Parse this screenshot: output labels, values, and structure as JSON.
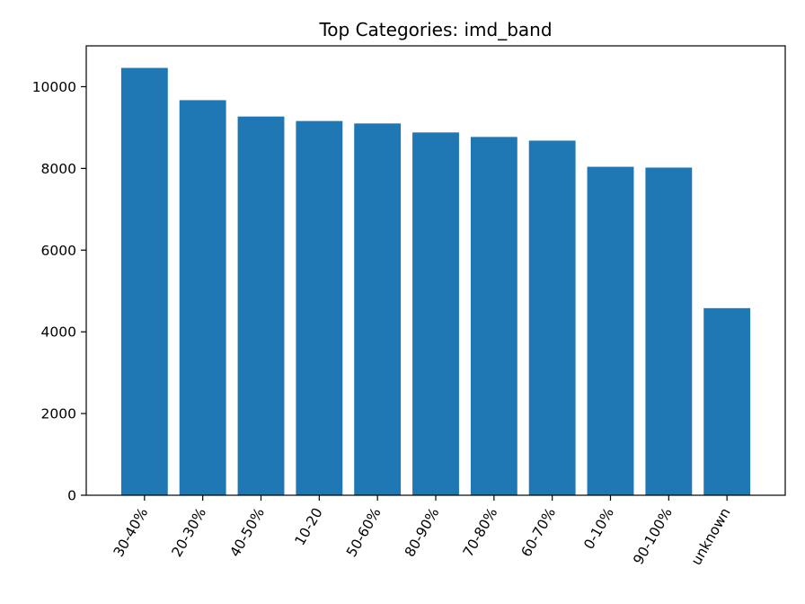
{
  "chart_data": {
    "type": "bar",
    "title": "Top Categories: imd_band",
    "xlabel": "",
    "ylabel": "",
    "categories": [
      "30-40%",
      "20-30%",
      "40-50%",
      "10-20",
      "50-60%",
      "80-90%",
      "70-80%",
      "60-70%",
      "0-10%",
      "90-100%",
      "unknown"
    ],
    "values": [
      10460,
      9670,
      9270,
      9160,
      9100,
      8880,
      8770,
      8680,
      8040,
      8020,
      4580
    ],
    "ylim": [
      0,
      11000
    ],
    "yticks": [
      0,
      2000,
      4000,
      6000,
      8000,
      10000
    ],
    "bar_color": "#1f77b4",
    "grid": false,
    "legend": "none"
  }
}
